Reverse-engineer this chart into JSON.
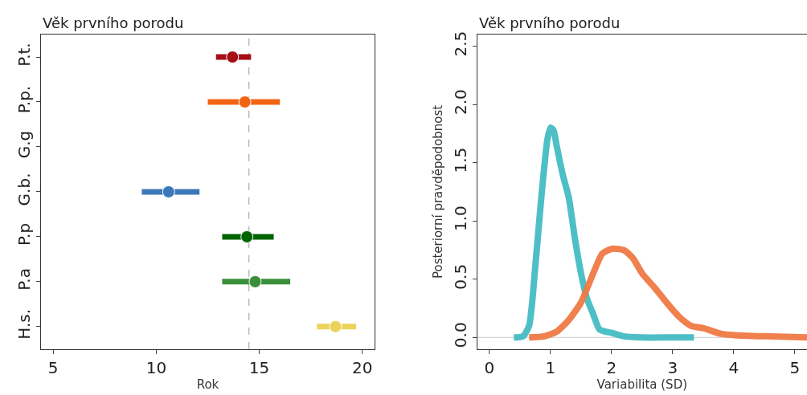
{
  "chart_data": [
    {
      "type": "scatter",
      "title": "Věk prvního porodu",
      "xlabel": "Rok",
      "orientation": "horizontal",
      "marker": "circle",
      "grid": false,
      "categories": [
        "P.t.",
        "P.p.",
        "G.g",
        "G.b.",
        "P.p",
        "P.a",
        "H.s."
      ],
      "values": [
        13.7,
        14.3,
        null,
        10.6,
        14.4,
        14.8,
        18.7
      ],
      "errors": [
        [
          12.9,
          14.6
        ],
        [
          12.5,
          16.0
        ],
        null,
        [
          9.3,
          12.1
        ],
        [
          13.2,
          15.7
        ],
        [
          13.2,
          16.5
        ],
        [
          17.8,
          19.7
        ]
      ],
      "colors": [
        "#a50f15",
        "#f26414",
        "#000000",
        "#3b78b8",
        "#006400",
        "#3a8f3a",
        "#ebd35a"
      ],
      "xlim": [
        4.4,
        20.6
      ],
      "xticks": [
        5,
        10,
        15,
        20
      ],
      "ref_lines": [
        {
          "axis": "x",
          "value": 14.5,
          "color": "#999999",
          "line_style": "dashed"
        }
      ]
    },
    {
      "type": "line",
      "title": "Věk prvního porodu",
      "xlabel": "Variabilita (SD)",
      "ylabel": "Posteriorní pravděpodobnost",
      "grid": false,
      "marker": "none",
      "line_style": "solid",
      "xlim": [
        -0.2,
        5.2
      ],
      "xticks": [
        0,
        1,
        2,
        3,
        4,
        5
      ],
      "ylim": [
        -0.1,
        2.6
      ],
      "yticks": [
        {
          "value": 0,
          "label": "0.0"
        },
        0.5,
        {
          "value": 1,
          "label": "1.0"
        },
        1.5,
        {
          "value": 2,
          "label": "2.0"
        },
        2.5
      ],
      "ref_lines": [
        {
          "axis": "y",
          "value": 0,
          "color": "#cccccc",
          "line_style": "solid"
        }
      ],
      "series": [
        {
          "color": "#45bcc3",
          "x": [
            0.4,
            0.55,
            0.65,
            0.75,
            0.85,
            0.95,
            1.0,
            1.05,
            1.1,
            1.2,
            1.3,
            1.4,
            1.5,
            1.6,
            1.7,
            1.8,
            1.9,
            2.0,
            2.2,
            2.5,
            3.0,
            3.35
          ],
          "values": [
            0,
            0.01,
            0.1,
            0.6,
            1.2,
            1.7,
            1.8,
            1.78,
            1.65,
            1.4,
            1.2,
            0.85,
            0.55,
            0.33,
            0.2,
            0.07,
            0.05,
            0.04,
            0.01,
            0,
            0,
            0
          ]
        },
        {
          "color": "#f07a45",
          "x": [
            0.65,
            0.9,
            1.1,
            1.3,
            1.5,
            1.7,
            1.85,
            2.0,
            2.2,
            2.35,
            2.5,
            2.7,
            2.9,
            3.1,
            3.3,
            3.5,
            3.8,
            4.0,
            4.5,
            5.2
          ],
          "values": [
            0,
            0.01,
            0.05,
            0.15,
            0.3,
            0.55,
            0.72,
            0.76,
            0.75,
            0.68,
            0.55,
            0.43,
            0.3,
            0.18,
            0.1,
            0.08,
            0.03,
            0.02,
            0.01,
            0
          ]
        }
      ]
    }
  ]
}
